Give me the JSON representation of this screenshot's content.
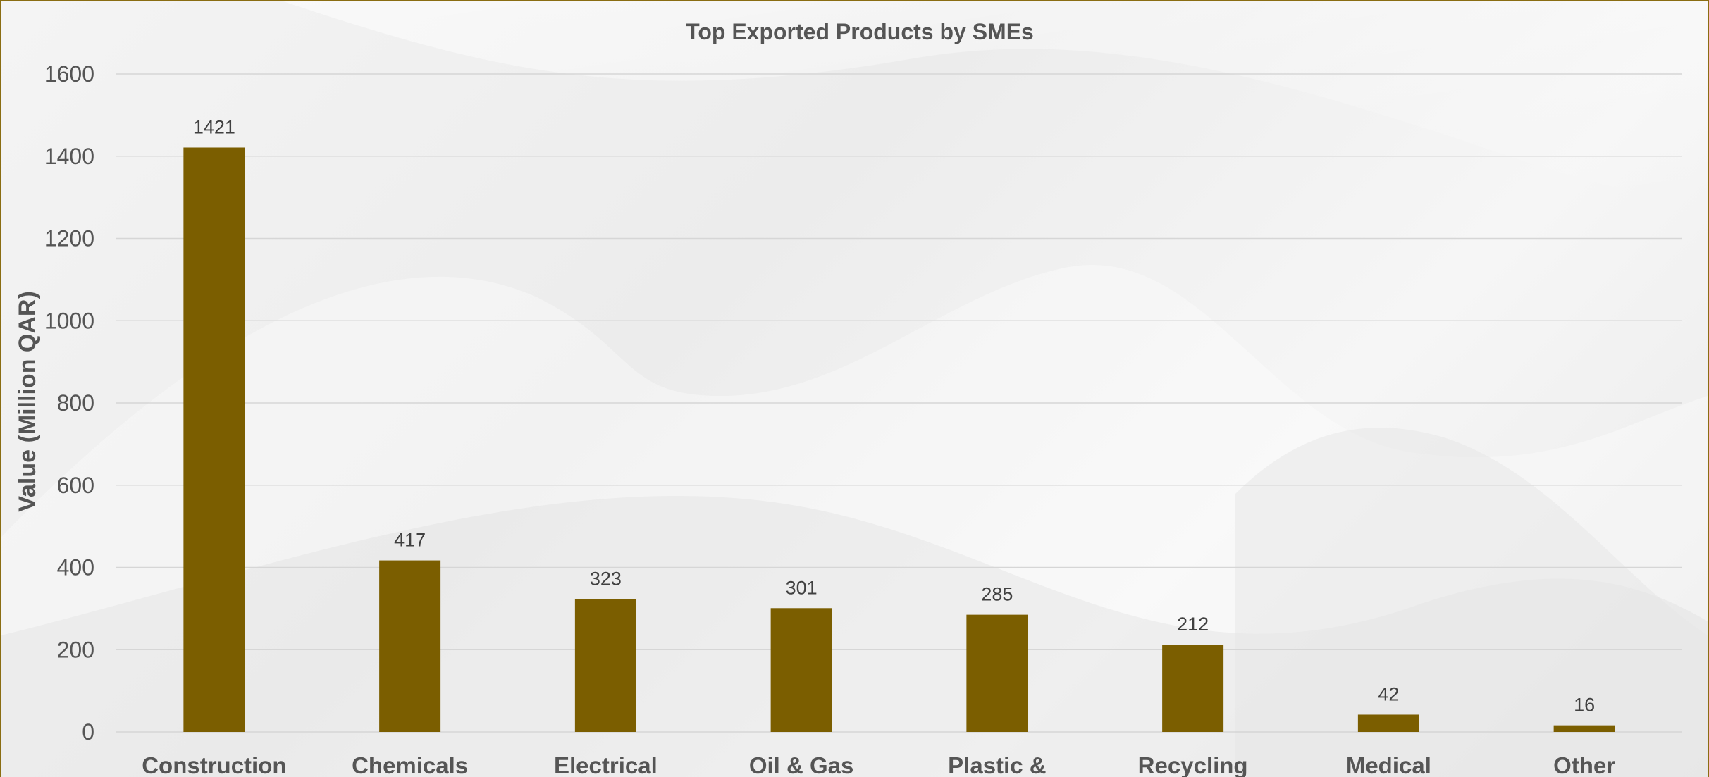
{
  "chart_data": {
    "type": "bar",
    "title": "Top Exported Products by SMEs",
    "xlabel": "",
    "ylabel": "Value (Million QAR)",
    "ylim": [
      0,
      1600
    ],
    "yticks": [
      0,
      200,
      400,
      600,
      800,
      1000,
      1200,
      1400,
      1600
    ],
    "categories": [
      "Construction",
      "Chemicals",
      "Electrical",
      "Oil & Gas",
      "Plastic &",
      "Recycling",
      "Medical",
      "Other"
    ],
    "values": [
      1421,
      417,
      323,
      301,
      285,
      212,
      42,
      16
    ],
    "grid": true,
    "legend": "none",
    "bar_color": "#7b5e00",
    "frame_color": "#8a6d12"
  }
}
